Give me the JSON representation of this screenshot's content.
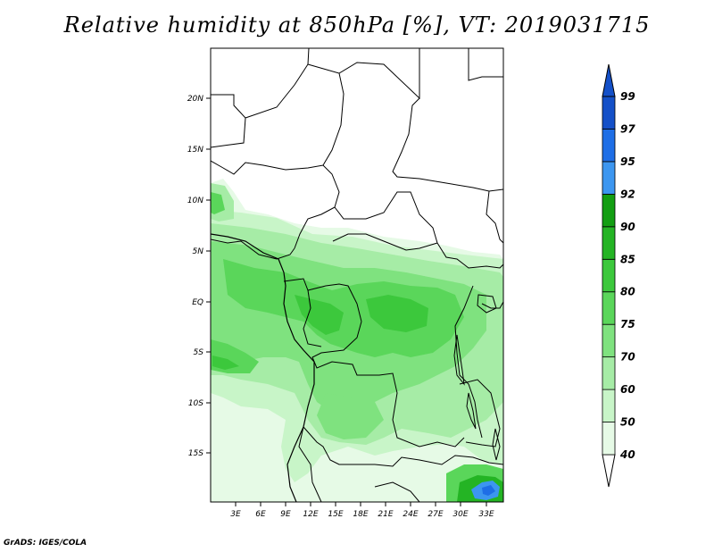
{
  "title": "Relative humidity at 850hPa [%], VT: 2019031715",
  "credit": "GrADS: IGES/COLA",
  "map": {
    "lat_ticks": [
      "20N",
      "15N",
      "10N",
      "5N",
      "EQ",
      "5S",
      "10S",
      "15S"
    ],
    "lon_ticks": [
      "3E",
      "6E",
      "9E",
      "12E",
      "15E",
      "18E",
      "21E",
      "24E",
      "27E",
      "30E",
      "33E"
    ]
  },
  "colorbar": {
    "levels": [
      "40",
      "50",
      "60",
      "70",
      "75",
      "80",
      "85",
      "90",
      "92",
      "95",
      "97",
      "99"
    ],
    "colors": [
      "#ffffff",
      "#e6fae6",
      "#c8f5c8",
      "#a6eca6",
      "#7fe27f",
      "#5ad65a",
      "#3cc83c",
      "#24b424",
      "#129e12",
      "#3c96f0",
      "#1e6ee6",
      "#1450c8"
    ]
  }
}
